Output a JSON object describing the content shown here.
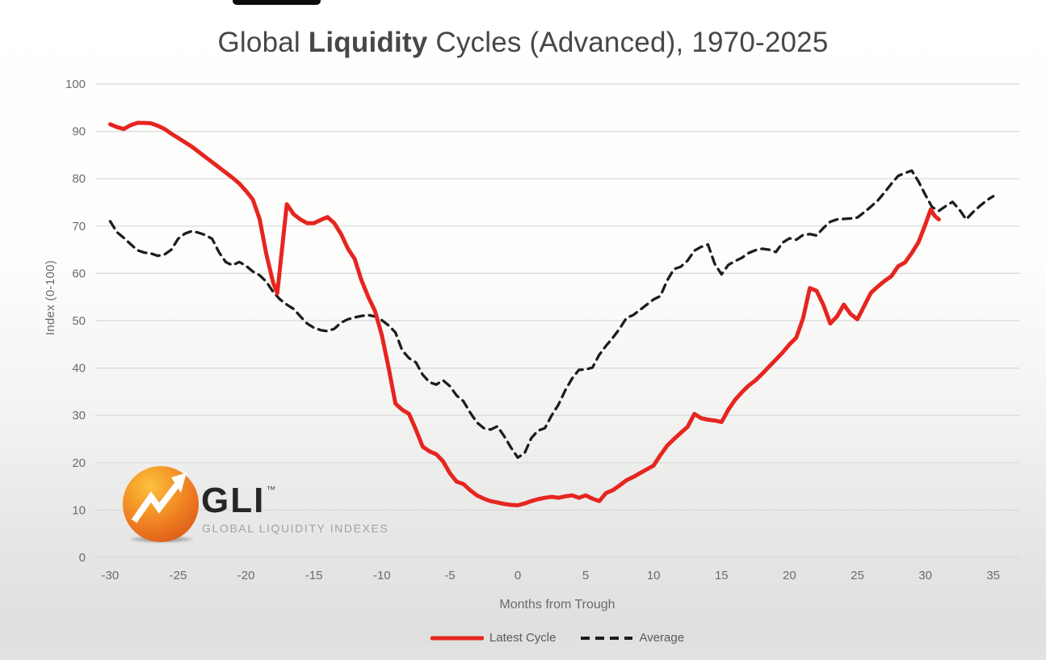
{
  "title": {
    "prefix": "Global ",
    "bold": "Liquidity",
    "suffix": " Cycles (Advanced), 1970-2025"
  },
  "logo": {
    "name": "GLI",
    "trademark": "™",
    "subtitle": "GLOBAL LIQUIDITY INDEXES"
  },
  "chart_data": {
    "type": "line",
    "title": "Global Liquidity Cycles (Advanced), 1970-2025",
    "xlabel": "Months from Trough",
    "ylabel": "Index (0-100)",
    "xlim": [
      -31,
      37
    ],
    "ylim": [
      0,
      100
    ],
    "x_ticks": [
      -30,
      -25,
      -20,
      -15,
      -10,
      -5,
      0,
      5,
      10,
      15,
      20,
      25,
      30,
      35
    ],
    "y_ticks": [
      0,
      10,
      20,
      30,
      40,
      50,
      60,
      70,
      80,
      90,
      100
    ],
    "grid": "horizontal",
    "gridline_color": "#d8d8d7",
    "tick_label_color": "#6b6b6b",
    "legend_position": "bottom",
    "series": [
      {
        "name": "Latest Cycle",
        "color": "#e6251f",
        "style": "solid",
        "points": [
          [
            -30,
            91.5
          ],
          [
            -29.5,
            90.9
          ],
          [
            -29,
            90.5
          ],
          [
            -28.5,
            91.3
          ],
          [
            -28,
            91.8
          ],
          [
            -27.5,
            91.8
          ],
          [
            -27,
            91.7
          ],
          [
            -26.5,
            91.2
          ],
          [
            -26,
            90.5
          ],
          [
            -25.5,
            89.5
          ],
          [
            -25,
            88.6
          ],
          [
            -24,
            86.8
          ],
          [
            -23,
            84.6
          ],
          [
            -22,
            82.4
          ],
          [
            -21,
            80.2
          ],
          [
            -20.5,
            79
          ],
          [
            -20,
            77.4
          ],
          [
            -19.5,
            75.6
          ],
          [
            -19,
            71.5
          ],
          [
            -18.5,
            64
          ],
          [
            -18,
            58
          ],
          [
            -17.7,
            55.8
          ],
          [
            -17,
            74.6
          ],
          [
            -16.5,
            72.5
          ],
          [
            -16,
            71.4
          ],
          [
            -15.5,
            70.6
          ],
          [
            -15,
            70.6
          ],
          [
            -14.5,
            71.3
          ],
          [
            -14,
            71.9
          ],
          [
            -13.5,
            70.6
          ],
          [
            -13,
            68.3
          ],
          [
            -12.5,
            65.2
          ],
          [
            -12,
            63
          ],
          [
            -11.5,
            58.5
          ],
          [
            -11,
            55
          ],
          [
            -10.5,
            52
          ],
          [
            -10,
            46.9
          ],
          [
            -9.5,
            40
          ],
          [
            -9,
            32.5
          ],
          [
            -8.5,
            31.2
          ],
          [
            -8,
            30.3
          ],
          [
            -7.5,
            27
          ],
          [
            -7,
            23.4
          ],
          [
            -6.5,
            22.4
          ],
          [
            -6,
            21.8
          ],
          [
            -5.5,
            20.3
          ],
          [
            -5,
            17.8
          ],
          [
            -4.5,
            16
          ],
          [
            -4,
            15.5
          ],
          [
            -3.5,
            14.2
          ],
          [
            -3,
            13.1
          ],
          [
            -2.5,
            12.4
          ],
          [
            -2,
            11.9
          ],
          [
            -1.5,
            11.6
          ],
          [
            -1,
            11.3
          ],
          [
            -0.5,
            11.1
          ],
          [
            0,
            11
          ],
          [
            0.5,
            11.4
          ],
          [
            1,
            11.9
          ],
          [
            1.5,
            12.3
          ],
          [
            2,
            12.6
          ],
          [
            2.5,
            12.8
          ],
          [
            3,
            12.6
          ],
          [
            3.5,
            12.9
          ],
          [
            4,
            13.1
          ],
          [
            4.5,
            12.6
          ],
          [
            5,
            13.1
          ],
          [
            5.5,
            12.4
          ],
          [
            6,
            11.9
          ],
          [
            6.5,
            13.6
          ],
          [
            7,
            14.2
          ],
          [
            7.5,
            15.2
          ],
          [
            8,
            16.3
          ],
          [
            8.5,
            17
          ],
          [
            9,
            17.8
          ],
          [
            9.5,
            18.6
          ],
          [
            10,
            19.4
          ],
          [
            10.5,
            21.6
          ],
          [
            11,
            23.6
          ],
          [
            11.5,
            25
          ],
          [
            12,
            26.3
          ],
          [
            12.5,
            27.6
          ],
          [
            13,
            30.3
          ],
          [
            13.5,
            29.4
          ],
          [
            14,
            29.1
          ],
          [
            14.5,
            28.9
          ],
          [
            15,
            28.6
          ],
          [
            15.5,
            31.2
          ],
          [
            16,
            33.3
          ],
          [
            16.5,
            34.9
          ],
          [
            17,
            36.3
          ],
          [
            17.5,
            37.4
          ],
          [
            18,
            38.8
          ],
          [
            18.5,
            40.3
          ],
          [
            19,
            41.8
          ],
          [
            19.5,
            43.3
          ],
          [
            20,
            45
          ],
          [
            20.5,
            46.4
          ],
          [
            21,
            50.5
          ],
          [
            21.5,
            56.9
          ],
          [
            22,
            56.3
          ],
          [
            22.5,
            53.3
          ],
          [
            23,
            49.4
          ],
          [
            23.5,
            50.9
          ],
          [
            24,
            53.4
          ],
          [
            24.5,
            51.4
          ],
          [
            25,
            50.3
          ],
          [
            25.5,
            53.1
          ],
          [
            26,
            55.9
          ],
          [
            26.5,
            57.2
          ],
          [
            27,
            58.4
          ],
          [
            27.5,
            59.4
          ],
          [
            28,
            61.5
          ],
          [
            28.5,
            62.3
          ],
          [
            29,
            64.3
          ],
          [
            29.5,
            66.6
          ],
          [
            30,
            70.3
          ],
          [
            30.4,
            73.5
          ],
          [
            30.7,
            72.1
          ],
          [
            31,
            71.4
          ]
        ]
      },
      {
        "name": "Average",
        "color": "#1d1d1d",
        "style": "dashed",
        "points": [
          [
            -30,
            71
          ],
          [
            -29.5,
            68.7
          ],
          [
            -29,
            67.5
          ],
          [
            -28.5,
            66.2
          ],
          [
            -28,
            64.9
          ],
          [
            -27.5,
            64.4
          ],
          [
            -27,
            64.2
          ],
          [
            -26.5,
            63.7
          ],
          [
            -26,
            64
          ],
          [
            -25.5,
            65
          ],
          [
            -25,
            67.3
          ],
          [
            -24.5,
            68.4
          ],
          [
            -24,
            68.9
          ],
          [
            -23.5,
            68.6
          ],
          [
            -23,
            68.1
          ],
          [
            -22.5,
            67.3
          ],
          [
            -22,
            64.5
          ],
          [
            -21.5,
            62.4
          ],
          [
            -21,
            61.7
          ],
          [
            -20.5,
            62.4
          ],
          [
            -20,
            61.6
          ],
          [
            -19.5,
            60.4
          ],
          [
            -19,
            59.6
          ],
          [
            -18.5,
            58.2
          ],
          [
            -18,
            56.1
          ],
          [
            -17.5,
            54.5
          ],
          [
            -17,
            53.4
          ],
          [
            -16.5,
            52.5
          ],
          [
            -16,
            50.9
          ],
          [
            -15.5,
            49.4
          ],
          [
            -15,
            48.5
          ],
          [
            -14.5,
            48
          ],
          [
            -14,
            47.8
          ],
          [
            -13.5,
            48.3
          ],
          [
            -13,
            49.6
          ],
          [
            -12.5,
            50.3
          ],
          [
            -12,
            50.7
          ],
          [
            -11.5,
            51
          ],
          [
            -11,
            51.2
          ],
          [
            -10.5,
            50.9
          ],
          [
            -10,
            50.1
          ],
          [
            -9.5,
            49
          ],
          [
            -9,
            47.5
          ],
          [
            -8.5,
            43.7
          ],
          [
            -8,
            42.1
          ],
          [
            -7.5,
            41.2
          ],
          [
            -7,
            38.6
          ],
          [
            -6.5,
            37
          ],
          [
            -6,
            36.5
          ],
          [
            -5.5,
            37.4
          ],
          [
            -5,
            36.2
          ],
          [
            -4.5,
            34.2
          ],
          [
            -4,
            33
          ],
          [
            -3.5,
            30.6
          ],
          [
            -3,
            28.5
          ],
          [
            -2.5,
            27.3
          ],
          [
            -2,
            27
          ],
          [
            -1.5,
            27.7
          ],
          [
            -1,
            25.6
          ],
          [
            -0.5,
            23.2
          ],
          [
            0,
            21.1
          ],
          [
            0.5,
            22
          ],
          [
            1,
            25.2
          ],
          [
            1.5,
            26.8
          ],
          [
            2,
            27.3
          ],
          [
            2.5,
            30
          ],
          [
            3,
            32.3
          ],
          [
            3.5,
            35.3
          ],
          [
            4,
            37.8
          ],
          [
            4.5,
            39.6
          ],
          [
            5,
            39.7
          ],
          [
            5.5,
            40.1
          ],
          [
            6,
            42.8
          ],
          [
            6.5,
            44.7
          ],
          [
            7,
            46.4
          ],
          [
            7.5,
            48.3
          ],
          [
            8,
            50.6
          ],
          [
            8.5,
            51.2
          ],
          [
            9,
            52.3
          ],
          [
            9.5,
            53.4
          ],
          [
            10,
            54.5
          ],
          [
            10.5,
            55.2
          ],
          [
            11,
            58.5
          ],
          [
            11.5,
            60.9
          ],
          [
            12,
            61.4
          ],
          [
            12.5,
            62.7
          ],
          [
            13,
            64.8
          ],
          [
            13.5,
            65.6
          ],
          [
            14,
            66.1
          ],
          [
            14.5,
            62
          ],
          [
            15,
            59.8
          ],
          [
            15.5,
            61.8
          ],
          [
            16,
            62.6
          ],
          [
            16.5,
            63.3
          ],
          [
            17,
            64.3
          ],
          [
            17.5,
            64.9
          ],
          [
            18,
            65.2
          ],
          [
            18.5,
            65
          ],
          [
            19,
            64.5
          ],
          [
            19.5,
            66.5
          ],
          [
            20,
            67.4
          ],
          [
            20.5,
            67.1
          ],
          [
            21,
            68.1
          ],
          [
            21.5,
            68.3
          ],
          [
            22,
            68
          ],
          [
            22.5,
            69.6
          ],
          [
            23,
            70.9
          ],
          [
            23.5,
            71.4
          ],
          [
            24,
            71.5
          ],
          [
            24.5,
            71.6
          ],
          [
            25,
            71.8
          ],
          [
            25.5,
            72.9
          ],
          [
            26,
            74.1
          ],
          [
            26.5,
            75.4
          ],
          [
            27,
            77.1
          ],
          [
            27.5,
            78.9
          ],
          [
            28,
            80.6
          ],
          [
            28.5,
            81.2
          ],
          [
            29,
            81.7
          ],
          [
            29.5,
            79.4
          ],
          [
            30,
            76.6
          ],
          [
            30.5,
            74
          ],
          [
            31,
            73.2
          ],
          [
            31.5,
            74.2
          ],
          [
            32,
            75.1
          ],
          [
            32.5,
            73.5
          ],
          [
            33,
            71.4
          ],
          [
            33.5,
            72.9
          ],
          [
            34,
            74.2
          ],
          [
            34.5,
            75.4
          ],
          [
            35,
            76.3
          ]
        ]
      }
    ]
  }
}
